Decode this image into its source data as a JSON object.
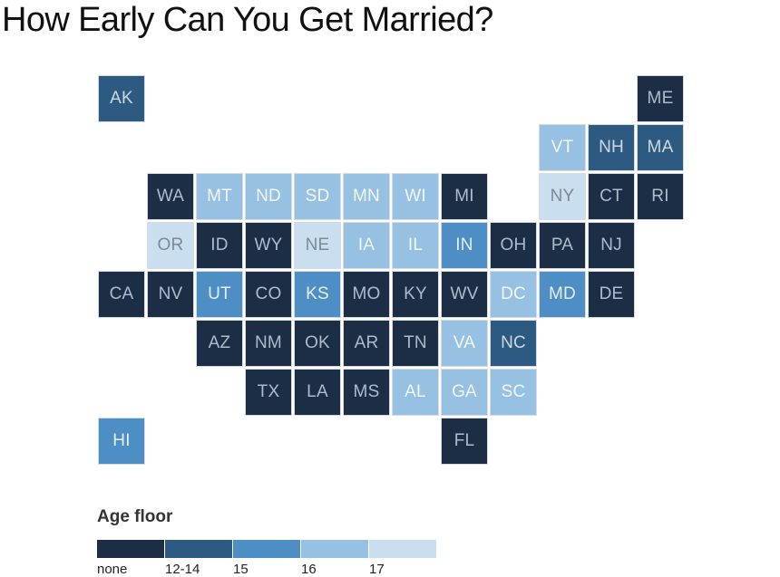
{
  "title": "How Early Can You Get Married?",
  "legend": {
    "title": "Age floor",
    "categories": [
      {
        "label": "none",
        "color": "#1b2e45",
        "text_color": "#aebccb"
      },
      {
        "label": "12-14",
        "color": "#2d5a80",
        "text_color": "#cdd9e4"
      },
      {
        "label": "15",
        "color": "#4d8ec5",
        "text_color": "#e6eef6"
      },
      {
        "label": "16",
        "color": "#97c1e3",
        "text_color": "#f3f7fb"
      },
      {
        "label": "17",
        "color": "#c9dff0",
        "text_color": "#7d8a96"
      }
    ]
  },
  "states": [
    {
      "abbr": "AK",
      "row": 0,
      "col": 0,
      "category": "12-14"
    },
    {
      "abbr": "ME",
      "row": 0,
      "col": 11,
      "category": "none"
    },
    {
      "abbr": "VT",
      "row": 1,
      "col": 9,
      "category": "16"
    },
    {
      "abbr": "NH",
      "row": 1,
      "col": 10,
      "category": "12-14"
    },
    {
      "abbr": "MA",
      "row": 1,
      "col": 11,
      "category": "12-14"
    },
    {
      "abbr": "WA",
      "row": 2,
      "col": 1,
      "category": "none"
    },
    {
      "abbr": "MT",
      "row": 2,
      "col": 2,
      "category": "16"
    },
    {
      "abbr": "ND",
      "row": 2,
      "col": 3,
      "category": "16"
    },
    {
      "abbr": "SD",
      "row": 2,
      "col": 4,
      "category": "16"
    },
    {
      "abbr": "MN",
      "row": 2,
      "col": 5,
      "category": "16"
    },
    {
      "abbr": "WI",
      "row": 2,
      "col": 6,
      "category": "16"
    },
    {
      "abbr": "MI",
      "row": 2,
      "col": 7,
      "category": "none"
    },
    {
      "abbr": "NY",
      "row": 2,
      "col": 9,
      "category": "17"
    },
    {
      "abbr": "CT",
      "row": 2,
      "col": 10,
      "category": "none"
    },
    {
      "abbr": "RI",
      "row": 2,
      "col": 11,
      "category": "none"
    },
    {
      "abbr": "OR",
      "row": 3,
      "col": 1,
      "category": "17"
    },
    {
      "abbr": "ID",
      "row": 3,
      "col": 2,
      "category": "none"
    },
    {
      "abbr": "WY",
      "row": 3,
      "col": 3,
      "category": "none"
    },
    {
      "abbr": "NE",
      "row": 3,
      "col": 4,
      "category": "17"
    },
    {
      "abbr": "IA",
      "row": 3,
      "col": 5,
      "category": "16"
    },
    {
      "abbr": "IL",
      "row": 3,
      "col": 6,
      "category": "16"
    },
    {
      "abbr": "IN",
      "row": 3,
      "col": 7,
      "category": "15"
    },
    {
      "abbr": "OH",
      "row": 3,
      "col": 8,
      "category": "none"
    },
    {
      "abbr": "PA",
      "row": 3,
      "col": 9,
      "category": "none"
    },
    {
      "abbr": "NJ",
      "row": 3,
      "col": 10,
      "category": "none"
    },
    {
      "abbr": "CA",
      "row": 4,
      "col": 0,
      "category": "none"
    },
    {
      "abbr": "NV",
      "row": 4,
      "col": 1,
      "category": "none"
    },
    {
      "abbr": "UT",
      "row": 4,
      "col": 2,
      "category": "15"
    },
    {
      "abbr": "CO",
      "row": 4,
      "col": 3,
      "category": "none"
    },
    {
      "abbr": "KS",
      "row": 4,
      "col": 4,
      "category": "15"
    },
    {
      "abbr": "MO",
      "row": 4,
      "col": 5,
      "category": "none"
    },
    {
      "abbr": "KY",
      "row": 4,
      "col": 6,
      "category": "none"
    },
    {
      "abbr": "WV",
      "row": 4,
      "col": 7,
      "category": "none"
    },
    {
      "abbr": "DC",
      "row": 4,
      "col": 8,
      "category": "16"
    },
    {
      "abbr": "MD",
      "row": 4,
      "col": 9,
      "category": "15"
    },
    {
      "abbr": "DE",
      "row": 4,
      "col": 10,
      "category": "none"
    },
    {
      "abbr": "AZ",
      "row": 5,
      "col": 2,
      "category": "none"
    },
    {
      "abbr": "NM",
      "row": 5,
      "col": 3,
      "category": "none"
    },
    {
      "abbr": "OK",
      "row": 5,
      "col": 4,
      "category": "none"
    },
    {
      "abbr": "AR",
      "row": 5,
      "col": 5,
      "category": "none"
    },
    {
      "abbr": "TN",
      "row": 5,
      "col": 6,
      "category": "none"
    },
    {
      "abbr": "VA",
      "row": 5,
      "col": 7,
      "category": "16"
    },
    {
      "abbr": "NC",
      "row": 5,
      "col": 8,
      "category": "12-14"
    },
    {
      "abbr": "TX",
      "row": 6,
      "col": 3,
      "category": "none"
    },
    {
      "abbr": "LA",
      "row": 6,
      "col": 4,
      "category": "none"
    },
    {
      "abbr": "MS",
      "row": 6,
      "col": 5,
      "category": "none"
    },
    {
      "abbr": "AL",
      "row": 6,
      "col": 6,
      "category": "16"
    },
    {
      "abbr": "GA",
      "row": 6,
      "col": 7,
      "category": "16"
    },
    {
      "abbr": "SC",
      "row": 6,
      "col": 8,
      "category": "16"
    },
    {
      "abbr": "HI",
      "row": 7,
      "col": 0,
      "category": "15"
    },
    {
      "abbr": "FL",
      "row": 7,
      "col": 7,
      "category": "none"
    }
  ]
}
